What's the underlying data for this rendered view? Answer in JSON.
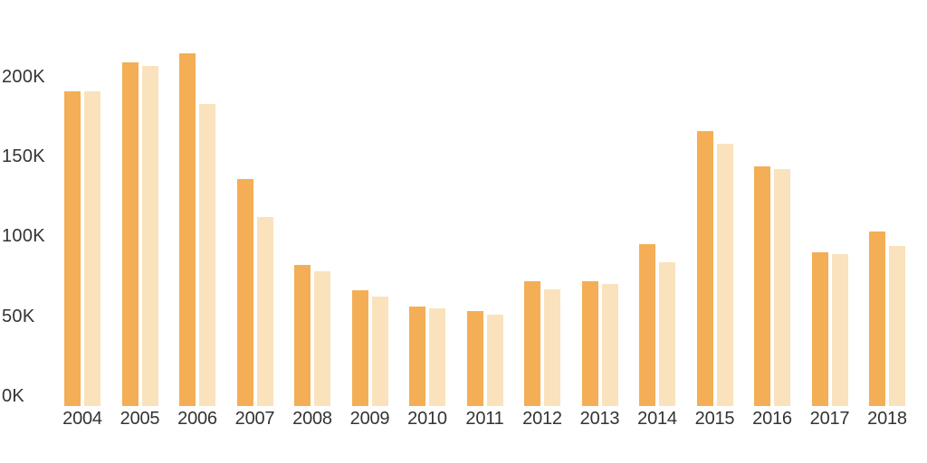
{
  "background_color": "#ffffff",
  "text_color": "#333333",
  "chart_data": {
    "type": "bar",
    "unit": "K",
    "categories": [
      "2004",
      "2005",
      "2006",
      "2007",
      "2008",
      "2009",
      "2010",
      "2011",
      "2012",
      "2013",
      "2014",
      "2015",
      "2016",
      "2017",
      "2018"
    ],
    "series": [
      {
        "name": "dark-orange-series",
        "color": "#F4AE55",
        "values": [
          191,
          209,
          215,
          136,
          82,
          66,
          56,
          53,
          72,
          72,
          95,
          166,
          144,
          90,
          103
        ]
      },
      {
        "name": "light-orange-series",
        "color": "#FAE2BD",
        "values": [
          191,
          207,
          183,
          112,
          78,
          62,
          55,
          51,
          67,
          70,
          84,
          158,
          142,
          89,
          94
        ]
      }
    ],
    "y_axis_ticks": [
      {
        "value": 200,
        "label": "200K"
      },
      {
        "value": 150,
        "label": "150K"
      },
      {
        "value": 100,
        "label": "100K"
      },
      {
        "value": 50,
        "label": "50K"
      },
      {
        "value": 0,
        "label": "0K"
      }
    ],
    "ylim": [
      0,
      248
    ],
    "xlabel": "",
    "ylabel": "",
    "grid": false,
    "legend": "none"
  }
}
